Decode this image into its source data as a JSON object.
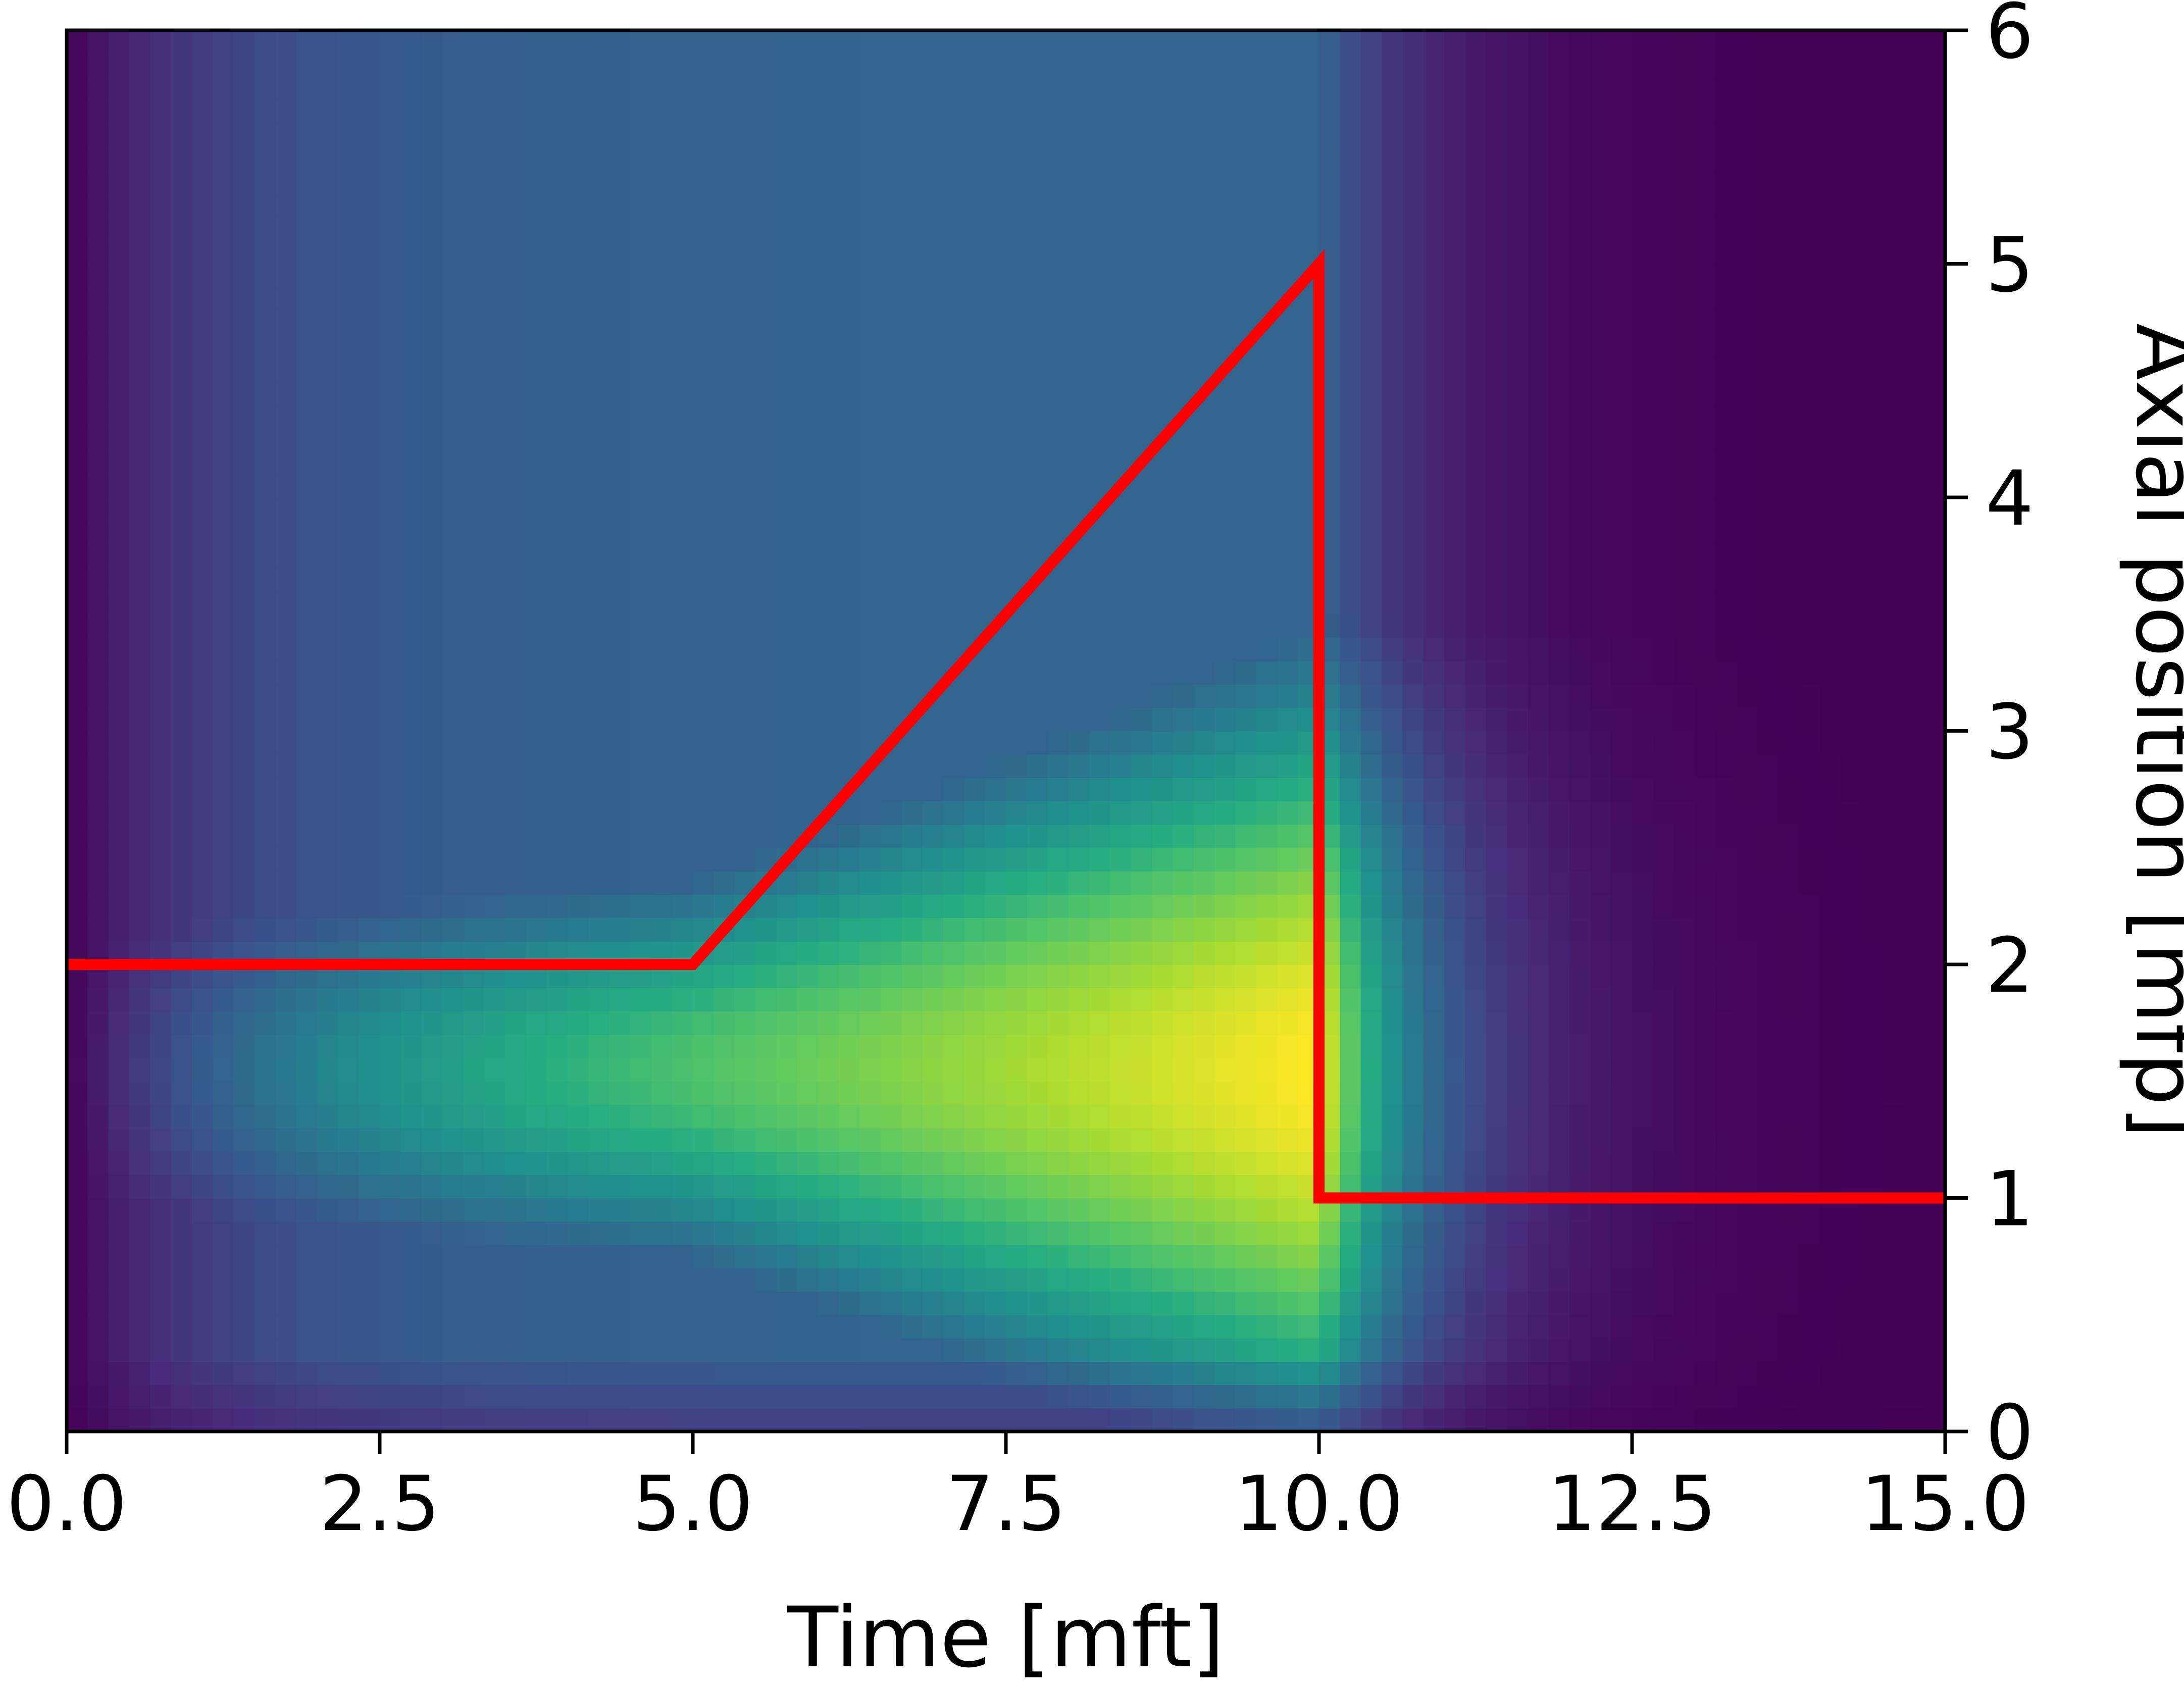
{
  "chart_data": {
    "type": "heatmap",
    "title": "",
    "xlabel": "Time [mft]",
    "ylabel": "Axial position [mfp]",
    "xlim": [
      0,
      15
    ],
    "ylim": [
      0,
      6
    ],
    "x_ticks": [
      "0.0",
      "2.5",
      "5.0",
      "7.5",
      "10.0",
      "12.5",
      "15.0"
    ],
    "y_ticks": [
      "0",
      "1",
      "2",
      "3",
      "4",
      "5",
      "6"
    ],
    "y_axis_side": "right",
    "colormap": "viridis",
    "colorbar": false,
    "grid": false,
    "heatmap_peak": {
      "x": 9.8,
      "y": 1.8
    },
    "overlay_line": {
      "color": "#ff0000",
      "x": [
        0,
        5,
        10,
        10,
        15
      ],
      "y": [
        2,
        2,
        5,
        1,
        1
      ]
    }
  }
}
